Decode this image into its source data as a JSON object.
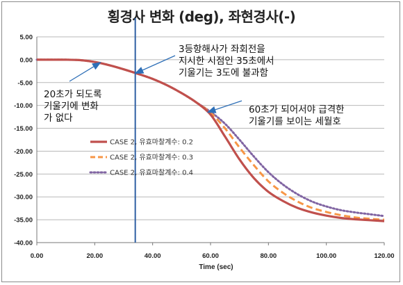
{
  "chart_data": {
    "type": "line",
    "title": "횡경사 변화 (deg), 좌현경사(-)",
    "xlabel": "Time (sec)",
    "ylabel": "",
    "xlim": [
      0,
      120
    ],
    "ylim": [
      -40,
      5
    ],
    "x_ticks": [
      "0.00",
      "20.00",
      "40.00",
      "60.00",
      "80.00",
      "100.00",
      "120.00"
    ],
    "y_ticks": [
      "5.00",
      "0.00",
      "-5.00",
      "-10.00",
      "-15.00",
      "-20.00",
      "-25.00",
      "-30.00",
      "-35.00",
      "-40.00"
    ],
    "grid": "horizontal",
    "legend_position": "center-left",
    "series": [
      {
        "name": "CASE 2, 유효마찰계수: 0.2",
        "color": "#c0504d",
        "style": "solid",
        "x": [
          0,
          10,
          15,
          20,
          25,
          30,
          35,
          40,
          45,
          50,
          55,
          60,
          65,
          70,
          75,
          80,
          85,
          90,
          95,
          100,
          105,
          110,
          115,
          120
        ],
        "y": [
          0,
          0,
          -0.1,
          -0.5,
          -1.2,
          -2.1,
          -3.1,
          -4.2,
          -5.6,
          -7.3,
          -9.3,
          -12.0,
          -16.8,
          -21.8,
          -25.9,
          -28.9,
          -30.9,
          -32.4,
          -33.4,
          -34.1,
          -34.6,
          -34.9,
          -35.1,
          -35.3
        ]
      },
      {
        "name": "CASE 2, 유효마찰계수: 0.3",
        "color": "#f79646",
        "style": "dashed",
        "x": [
          0,
          10,
          15,
          20,
          25,
          30,
          35,
          40,
          45,
          50,
          55,
          60,
          65,
          70,
          75,
          80,
          85,
          90,
          95,
          100,
          105,
          110,
          115,
          120
        ],
        "y": [
          0,
          0,
          -0.1,
          -0.5,
          -1.2,
          -2.1,
          -3.1,
          -4.2,
          -5.6,
          -7.3,
          -9.3,
          -11.6,
          -15.0,
          -19.2,
          -23.1,
          -26.6,
          -29.1,
          -31.0,
          -32.4,
          -33.3,
          -34.0,
          -34.5,
          -34.8,
          -35.0
        ]
      },
      {
        "name": "CASE 2, 유효마찰계수: 0.4",
        "color": "#8064a2",
        "style": "dotted",
        "x": [
          0,
          10,
          15,
          20,
          25,
          30,
          35,
          40,
          45,
          50,
          55,
          60,
          65,
          70,
          75,
          80,
          85,
          90,
          95,
          100,
          105,
          110,
          115,
          120
        ],
        "y": [
          0,
          0,
          -0.1,
          -0.5,
          -1.2,
          -2.1,
          -3.1,
          -4.2,
          -5.6,
          -7.3,
          -9.3,
          -11.4,
          -14.0,
          -17.5,
          -21.2,
          -24.6,
          -27.3,
          -29.4,
          -31.0,
          -32.1,
          -32.9,
          -33.4,
          -33.8,
          -34.2
        ]
      }
    ],
    "vertical_marker_x": 34,
    "vertical_marker_color": "#2e5fa3",
    "annotations": [
      {
        "lines": [
          "3등항해사가 좌회전을",
          "지시한 시점인 35초에서",
          "기울기는 3도에 불과함"
        ],
        "arrow_to": [
          34,
          -3.0
        ]
      },
      {
        "lines": [
          "20초가 되도록",
          "기울기에 변화",
          "가 없다"
        ],
        "arrow_to": [
          22,
          -0.6
        ]
      },
      {
        "lines": [
          "60초가 되어서야 급격한",
          "기울기를 보이는 세월호"
        ],
        "arrow_to": [
          59,
          -11.5
        ]
      }
    ]
  }
}
